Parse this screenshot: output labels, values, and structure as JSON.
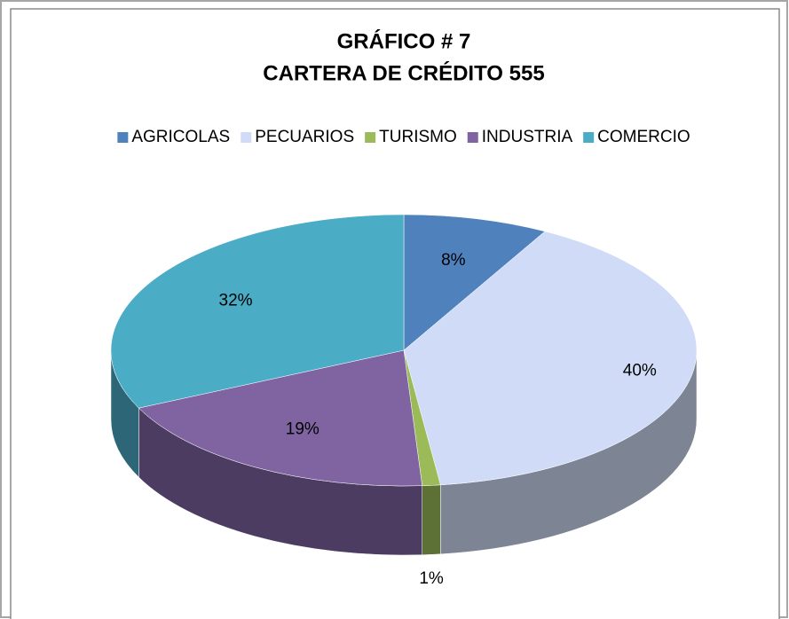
{
  "chart_data": {
    "type": "pie",
    "title": "GRÁFICO # 7",
    "subtitle": "CARTERA DE CRÉDITO 555",
    "categories": [
      "AGRICOLAS",
      "PECUARIOS",
      "TURISMO",
      "INDUSTRIA",
      "COMERCIO"
    ],
    "values": [
      8,
      40,
      1,
      19,
      32
    ],
    "value_labels": [
      "8%",
      "40%",
      "1%",
      "19%",
      "32%"
    ],
    "colors": [
      "#4f81bd",
      "#d0dcf7",
      "#9bbb59",
      "#8064a2",
      "#4bacc6"
    ],
    "legend": "top"
  }
}
